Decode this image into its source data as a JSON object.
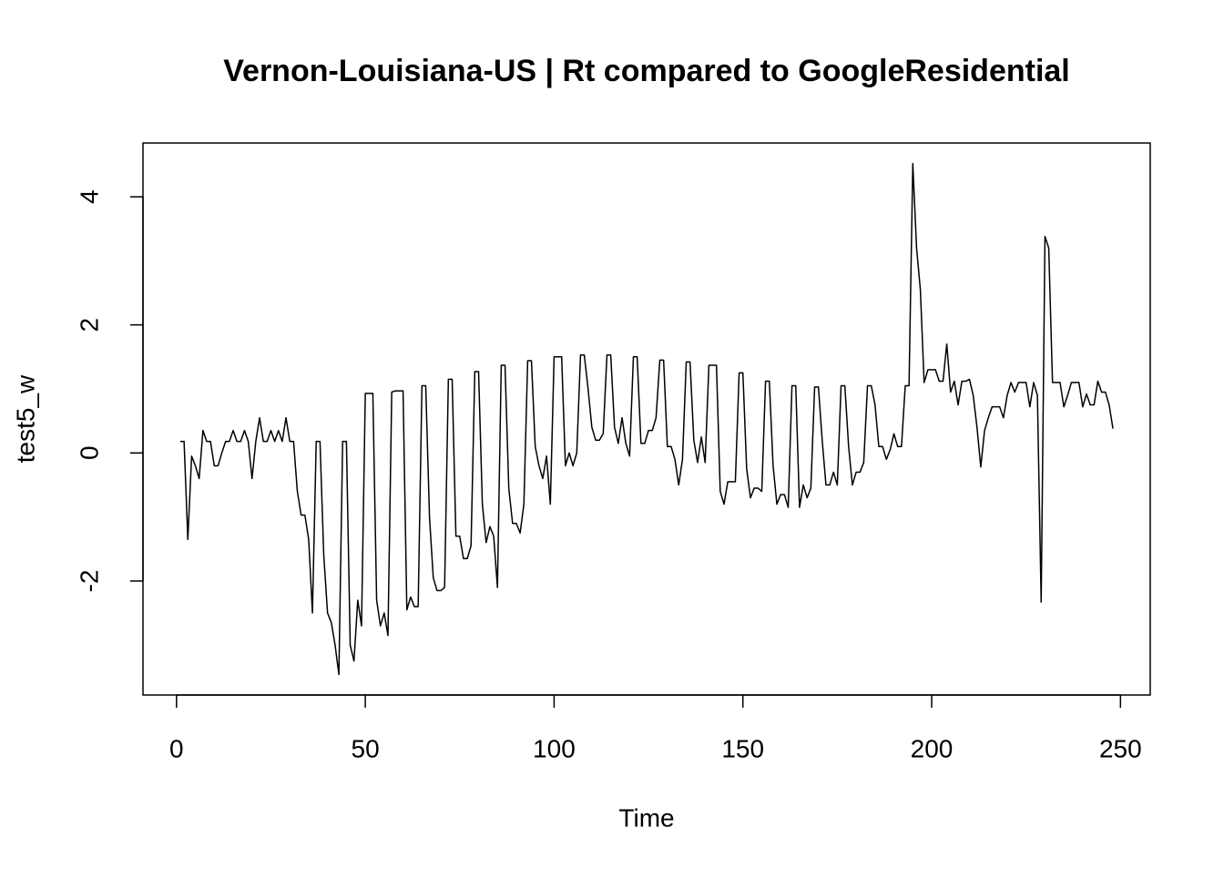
{
  "chart_data": {
    "type": "line",
    "title": "Vernon-Louisiana-US | Rt compared to GoogleResidential",
    "x_label": "Time",
    "y_label": "test5_w",
    "color": "#000000",
    "x": [
      1,
      2,
      3,
      4,
      5,
      6,
      7,
      8,
      9,
      10,
      11,
      12,
      13,
      14,
      15,
      16,
      17,
      18,
      19,
      20,
      21,
      22,
      23,
      24,
      25,
      26,
      27,
      28,
      29,
      30,
      31,
      32,
      33,
      34,
      35,
      36,
      37,
      38,
      39,
      40,
      41,
      42,
      43,
      44,
      45,
      46,
      47,
      48,
      49,
      50,
      51,
      52,
      53,
      54,
      55,
      56,
      57,
      58,
      59,
      60,
      61,
      62,
      63,
      64,
      65,
      66,
      67,
      68,
      69,
      70,
      71,
      72,
      73,
      74,
      75,
      76,
      77,
      78,
      79,
      80,
      81,
      82,
      83,
      84,
      85,
      86,
      87,
      88,
      89,
      90,
      91,
      92,
      93,
      94,
      95,
      96,
      97,
      98,
      99,
      100,
      101,
      102,
      103,
      104,
      105,
      106,
      107,
      108,
      109,
      110,
      111,
      112,
      113,
      114,
      115,
      116,
      117,
      118,
      119,
      120,
      121,
      122,
      123,
      124,
      125,
      126,
      127,
      128,
      129,
      130,
      131,
      132,
      133,
      134,
      135,
      136,
      137,
      138,
      139,
      140,
      141,
      142,
      143,
      144,
      145,
      146,
      147,
      148,
      149,
      150,
      151,
      152,
      153,
      154,
      155,
      156,
      157,
      158,
      159,
      160,
      161,
      162,
      163,
      164,
      165,
      166,
      167,
      168,
      169,
      170,
      171,
      172,
      173,
      174,
      175,
      176,
      177,
      178,
      179,
      180,
      181,
      182,
      183,
      184,
      185,
      186,
      187,
      188,
      189,
      190,
      191,
      192,
      193,
      194,
      195,
      196,
      197,
      198,
      199,
      200,
      201,
      202,
      203,
      204,
      205,
      206,
      207,
      208,
      209,
      210,
      211,
      212,
      213,
      214,
      215,
      216,
      217,
      218,
      219,
      220,
      221,
      222,
      223,
      224,
      225,
      226,
      227,
      228,
      229,
      230,
      231,
      232,
      233,
      234,
      235,
      236,
      237,
      238,
      239,
      240,
      241,
      242,
      243,
      244,
      245,
      246,
      247,
      248
    ],
    "values": [
      0.18,
      0.18,
      -1.35,
      -0.05,
      -0.2,
      -0.4,
      0.35,
      0.18,
      0.18,
      -0.2,
      -0.2,
      0.0,
      0.18,
      0.18,
      0.35,
      0.18,
      0.18,
      0.35,
      0.18,
      -0.4,
      0.18,
      0.55,
      0.18,
      0.18,
      0.35,
      0.18,
      0.35,
      0.18,
      0.55,
      0.18,
      0.18,
      -0.6,
      -0.97,
      -0.97,
      -1.35,
      -2.5,
      0.18,
      0.18,
      -1.6,
      -2.5,
      -2.65,
      -3.0,
      -3.46,
      0.18,
      0.18,
      -3.0,
      -3.25,
      -2.3,
      -2.7,
      0.93,
      0.93,
      0.93,
      -2.3,
      -2.7,
      -2.5,
      -2.85,
      0.95,
      0.97,
      0.97,
      0.97,
      -2.45,
      -2.25,
      -2.4,
      -2.4,
      1.05,
      1.05,
      -1.0,
      -1.95,
      -2.15,
      -2.15,
      -2.1,
      1.15,
      1.15,
      -1.3,
      -1.3,
      -1.65,
      -1.65,
      -1.45,
      1.27,
      1.27,
      -0.8,
      -1.4,
      -1.15,
      -1.3,
      -2.1,
      1.37,
      1.37,
      -0.55,
      -1.1,
      -1.1,
      -1.25,
      -0.8,
      1.44,
      1.44,
      0.1,
      -0.2,
      -0.4,
      -0.05,
      -0.8,
      1.5,
      1.5,
      1.5,
      -0.2,
      0.0,
      -0.2,
      0.0,
      1.53,
      1.53,
      1.0,
      0.4,
      0.2,
      0.2,
      0.3,
      1.53,
      1.53,
      0.4,
      0.15,
      0.55,
      0.15,
      -0.05,
      1.5,
      1.5,
      0.15,
      0.15,
      0.35,
      0.35,
      0.55,
      1.45,
      1.45,
      0.1,
      0.1,
      -0.1,
      -0.5,
      -0.1,
      1.42,
      1.42,
      0.2,
      -0.15,
      0.25,
      -0.15,
      1.37,
      1.37,
      1.37,
      -0.6,
      -0.8,
      -0.45,
      -0.45,
      -0.45,
      1.25,
      1.25,
      -0.25,
      -0.7,
      -0.55,
      -0.55,
      -0.6,
      1.12,
      1.12,
      -0.2,
      -0.8,
      -0.65,
      -0.65,
      -0.85,
      1.05,
      1.05,
      -0.85,
      -0.5,
      -0.7,
      -0.55,
      1.03,
      1.03,
      0.2,
      -0.5,
      -0.5,
      -0.3,
      -0.5,
      1.05,
      1.05,
      0.1,
      -0.5,
      -0.3,
      -0.3,
      -0.15,
      1.05,
      1.05,
      0.75,
      0.1,
      0.1,
      -0.1,
      0.05,
      0.3,
      0.1,
      0.1,
      1.05,
      1.05,
      4.52,
      3.2,
      2.55,
      1.1,
      1.3,
      1.3,
      1.3,
      1.12,
      1.12,
      1.7,
      0.95,
      1.12,
      0.75,
      1.12,
      1.12,
      1.15,
      0.9,
      0.4,
      -0.22,
      0.35,
      0.55,
      0.72,
      0.72,
      0.72,
      0.55,
      0.9,
      1.1,
      0.95,
      1.1,
      1.1,
      1.1,
      0.72,
      1.1,
      0.9,
      -2.33,
      3.38,
      3.2,
      1.1,
      1.1,
      1.1,
      0.72,
      0.9,
      1.1,
      1.1,
      1.1,
      0.72,
      0.92,
      0.75,
      0.75,
      1.12,
      0.95,
      0.95,
      0.75,
      0.38
    ],
    "xlim": [
      -8.88,
      257.88
    ],
    "ylim": [
      -3.78,
      4.84
    ],
    "xticks": [
      0,
      50,
      100,
      150,
      200,
      250
    ],
    "yticks": [
      -2,
      0,
      2,
      4
    ]
  }
}
